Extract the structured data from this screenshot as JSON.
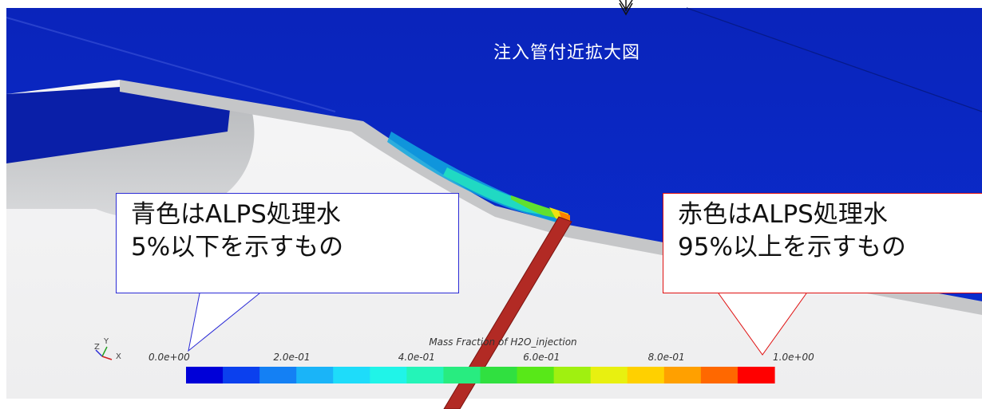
{
  "view_title": "注入管付近拡大図",
  "callouts": {
    "blue": {
      "line1": "青色はALPS処理水",
      "line2": "5%以下を示すもの",
      "border_color": "#2b2bd6"
    },
    "red": {
      "line1": "赤色はALPS処理水",
      "line2": "95%以上を示すもの",
      "border_color": "#e01010"
    }
  },
  "colorbar": {
    "title": "Mass Fraction of H2O_injection",
    "min": 0.0,
    "max": 1.0,
    "ticks": [
      "0.0e+00",
      "2.0e-01",
      "4.0e-01",
      "6.0e-01",
      "8.0e-01",
      "1.0e+00"
    ],
    "colors": [
      "#0000d8",
      "#0b40ee",
      "#1480f4",
      "#1ab4f8",
      "#1edcfa",
      "#20f4e8",
      "#24f4b8",
      "#28ec80",
      "#30e040",
      "#58e818",
      "#a0f010",
      "#e8f010",
      "#ffd000",
      "#ffa000",
      "#ff6800",
      "#ff0000"
    ]
  },
  "orientation_axes": {
    "z": "Z",
    "y": "Y",
    "x": "X"
  },
  "scene_colors": {
    "water_region": "#0a27c4",
    "solid_gray": "#c2c4c6",
    "pipe": "#b22a24",
    "background": "#ffffff"
  }
}
